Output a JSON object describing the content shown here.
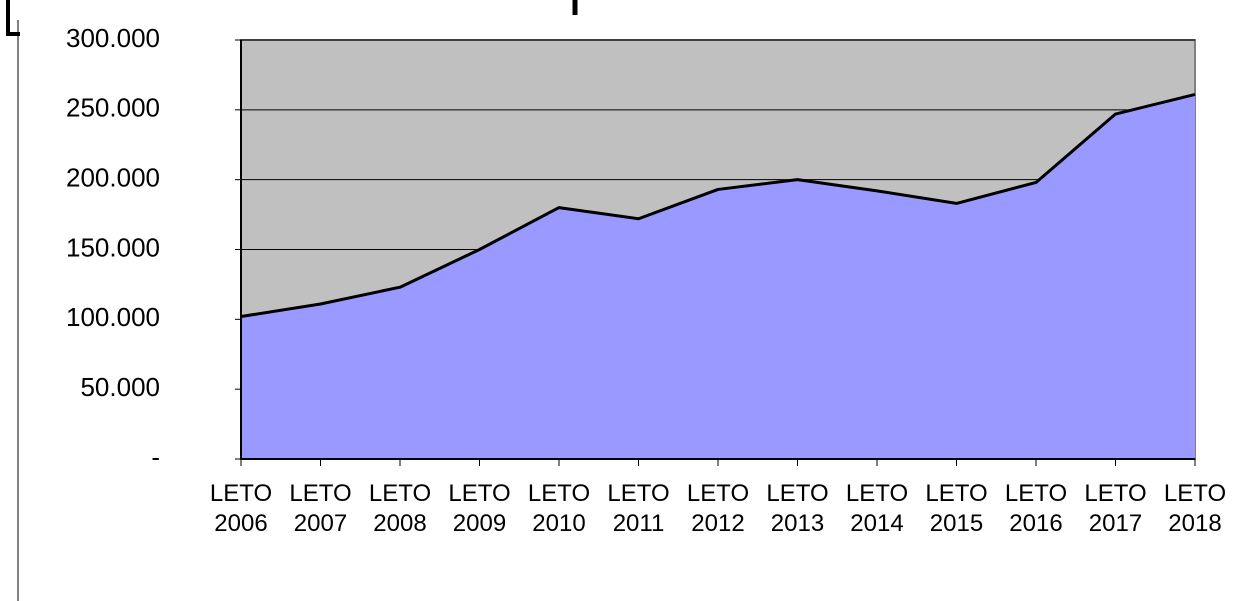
{
  "chart_data": {
    "type": "area",
    "categories": [
      "LETO 2006",
      "LETO 2007",
      "LETO 2008",
      "LETO 2009",
      "LETO 2010",
      "LETO 2011",
      "LETO 2012",
      "LETO 2013",
      "LETO 2014",
      "LETO 2015",
      "LETO 2016",
      "LETO 2017",
      "LETO 2018"
    ],
    "values": [
      102000,
      111000,
      123000,
      150000,
      180000,
      172000,
      193000,
      200000,
      192000,
      183000,
      198000,
      247000,
      261000
    ],
    "color": "#9999ff",
    "ylim": [
      0,
      300000
    ],
    "yticks": [
      {
        "value": 0,
        "label": "-"
      },
      {
        "value": 50000,
        "label": "50.000"
      },
      {
        "value": 100000,
        "label": "100.000"
      },
      {
        "value": 150000,
        "label": "150.000"
      },
      {
        "value": 200000,
        "label": "200.000"
      },
      {
        "value": 250000,
        "label": "250.000"
      },
      {
        "value": 300000,
        "label": "300.000"
      }
    ],
    "grid": true
  }
}
